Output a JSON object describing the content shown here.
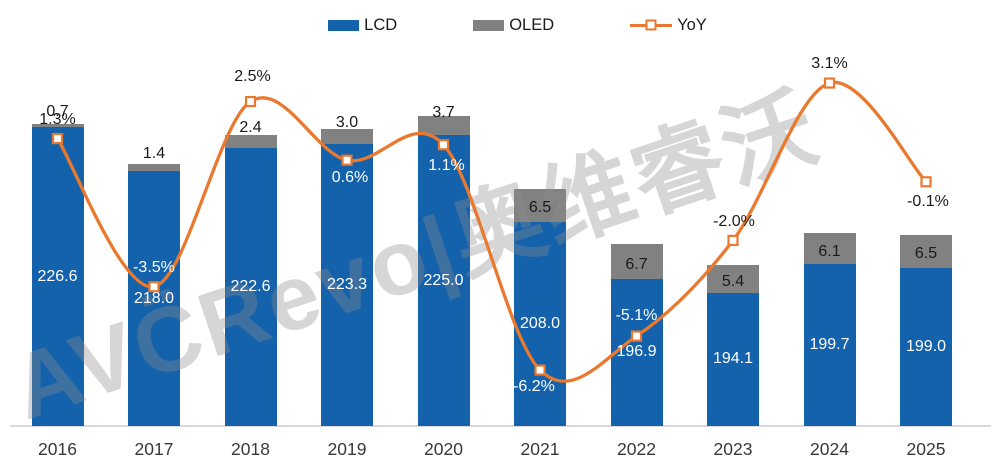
{
  "watermark": {
    "text": "AVC̈Revo|奥维睿沃"
  },
  "colors": {
    "lcd": "#1462ab",
    "oled": "#818181",
    "yoy_line": "#e8792e",
    "axis_line": "#d9d9d9",
    "label_dark": "#1a1a1a",
    "label_light": "#ffffff"
  },
  "chart_data": {
    "type": "combo_stacked_bar_line",
    "title": "",
    "categories": [
      "2016",
      "2017",
      "2018",
      "2019",
      "2020",
      "2021",
      "2022",
      "2023",
      "2024",
      "2025"
    ],
    "series": [
      {
        "name": "LCD",
        "type": "bar",
        "stack": "tv-panel",
        "color": "#1462ab",
        "values": [
          226.6,
          218.0,
          222.6,
          223.3,
          225.0,
          208.0,
          196.9,
          194.1,
          199.7,
          199.0
        ]
      },
      {
        "name": "OLED",
        "type": "bar",
        "stack": "tv-panel",
        "color": "#818181",
        "values": [
          0.7,
          1.4,
          2.4,
          3.0,
          3.7,
          6.5,
          6.7,
          5.4,
          6.1,
          6.5
        ]
      },
      {
        "name": "YoY",
        "type": "line",
        "color": "#e8792e",
        "unit": "%",
        "values": [
          1.3,
          -3.5,
          2.5,
          0.6,
          1.1,
          -6.2,
          -5.1,
          -2.0,
          3.1,
          -0.1
        ]
      }
    ],
    "legend_position": "top",
    "grid": false,
    "value_axis_visible": false,
    "data_labels": "all-points-labeled"
  }
}
